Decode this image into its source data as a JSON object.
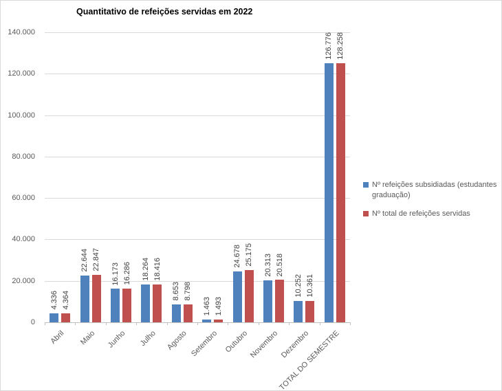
{
  "chart": {
    "title": "Quantitativo de refeições servidas em 2022"
  },
  "chart_data": {
    "type": "bar",
    "title": "Quantitativo de refeições servidas em 2022",
    "categories": [
      "Abril",
      "Maio",
      "Junho",
      "Julho",
      "Agosto",
      "Setembro",
      "Outubro",
      "Novembro",
      "Dezembro",
      "TOTAL DO SEMESTRE"
    ],
    "series": [
      {
        "name": "Nº refeições subsidiadas (estudantes graduação)",
        "color": "#4f81bd",
        "values": [
          4336,
          22644,
          16173,
          18264,
          8653,
          1463,
          24678,
          20313,
          10252,
          126776
        ],
        "labels": [
          "4.336",
          "22.644",
          "16.173",
          "18.264",
          "8.653",
          "1.463",
          "24.678",
          "20.313",
          "10.252",
          "126.776"
        ]
      },
      {
        "name": "Nº total de refeições servidas",
        "color": "#c0504d",
        "values": [
          4364,
          22847,
          16286,
          18416,
          8798,
          1493,
          25175,
          20518,
          10361,
          128258
        ],
        "labels": [
          "4.364",
          "22.847",
          "16.286",
          "18.416",
          "8.798",
          "1.493",
          "25.175",
          "20.518",
          "10.361",
          "128.258"
        ]
      }
    ],
    "ylim": [
      0,
      140000
    ],
    "ytick_step": 20000,
    "ytick_labels": [
      "0",
      "20.000",
      "40.000",
      "60.000",
      "80.000",
      "100.000",
      "120.000",
      "140.000"
    ],
    "grid": true,
    "legend_position": "right",
    "xlabel": "",
    "ylabel": ""
  },
  "colors": {
    "series1": "#4f81bd",
    "series2": "#c0504d",
    "gridline": "#d9d9d9",
    "axis_line": "#bfbfbf",
    "axis_text": "#595959",
    "data_label_text": "#404040",
    "title_text": "#000000",
    "background": "#ffffff"
  }
}
